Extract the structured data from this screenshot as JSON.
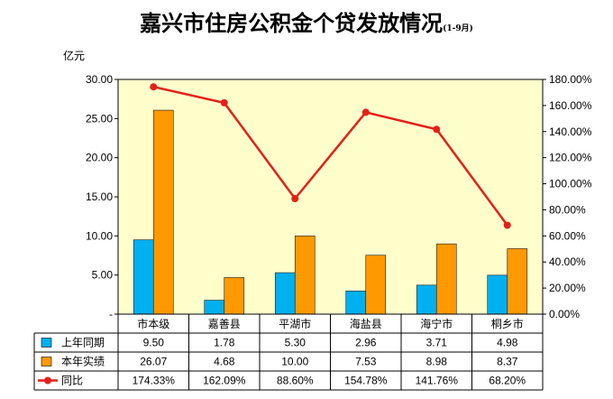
{
  "title": "嘉兴市住房公积金个贷发放情况",
  "subtitle": "(1-9月)",
  "y_unit": "亿元",
  "colors": {
    "prev_year": "#00b0f0",
    "this_year": "#ff9900",
    "yoy": "#e32119",
    "plot_bg": "#ffffcc"
  },
  "legend_icons": {
    "prev_year": "cyan-square-icon",
    "this_year": "orange-square-icon",
    "yoy": "red-line-marker-icon"
  },
  "chart_data": {
    "type": "bar",
    "categories": [
      "市本级",
      "嘉善县",
      "平湖市",
      "海盐县",
      "海宁市",
      "桐乡市"
    ],
    "series": [
      {
        "name": "上年同期",
        "type": "bar",
        "axis": "left",
        "values": [
          9.5,
          1.78,
          5.3,
          2.96,
          3.71,
          4.98
        ],
        "labels": [
          "9.50",
          "1.78",
          "5.30",
          "2.96",
          "3.71",
          "4.98"
        ]
      },
      {
        "name": "本年实绩",
        "type": "bar",
        "axis": "left",
        "values": [
          26.07,
          4.68,
          10.0,
          7.53,
          8.98,
          8.37
        ],
        "labels": [
          "26.07",
          "4.68",
          "10.00",
          "7.53",
          "8.98",
          "8.37"
        ]
      },
      {
        "name": "同比",
        "type": "line",
        "axis": "right",
        "values": [
          174.33,
          162.09,
          88.6,
          154.78,
          141.76,
          68.2
        ],
        "labels": [
          "174.33%",
          "162.09%",
          "88.60%",
          "154.78%",
          "141.76%",
          "68.20%"
        ]
      }
    ],
    "y_left": {
      "ylim": [
        0,
        30
      ],
      "ticks": [
        "-",
        "5.00",
        "10.00",
        "15.00",
        "20.00",
        "25.00",
        "30.00"
      ]
    },
    "y_right": {
      "ylim": [
        0,
        180
      ],
      "ticks": [
        "0.00%",
        "20.00%",
        "40.00%",
        "60.00%",
        "80.00%",
        "100.00%",
        "120.00%",
        "140.00%",
        "160.00%",
        "180.00%"
      ]
    },
    "data_table": true,
    "grid": false
  }
}
